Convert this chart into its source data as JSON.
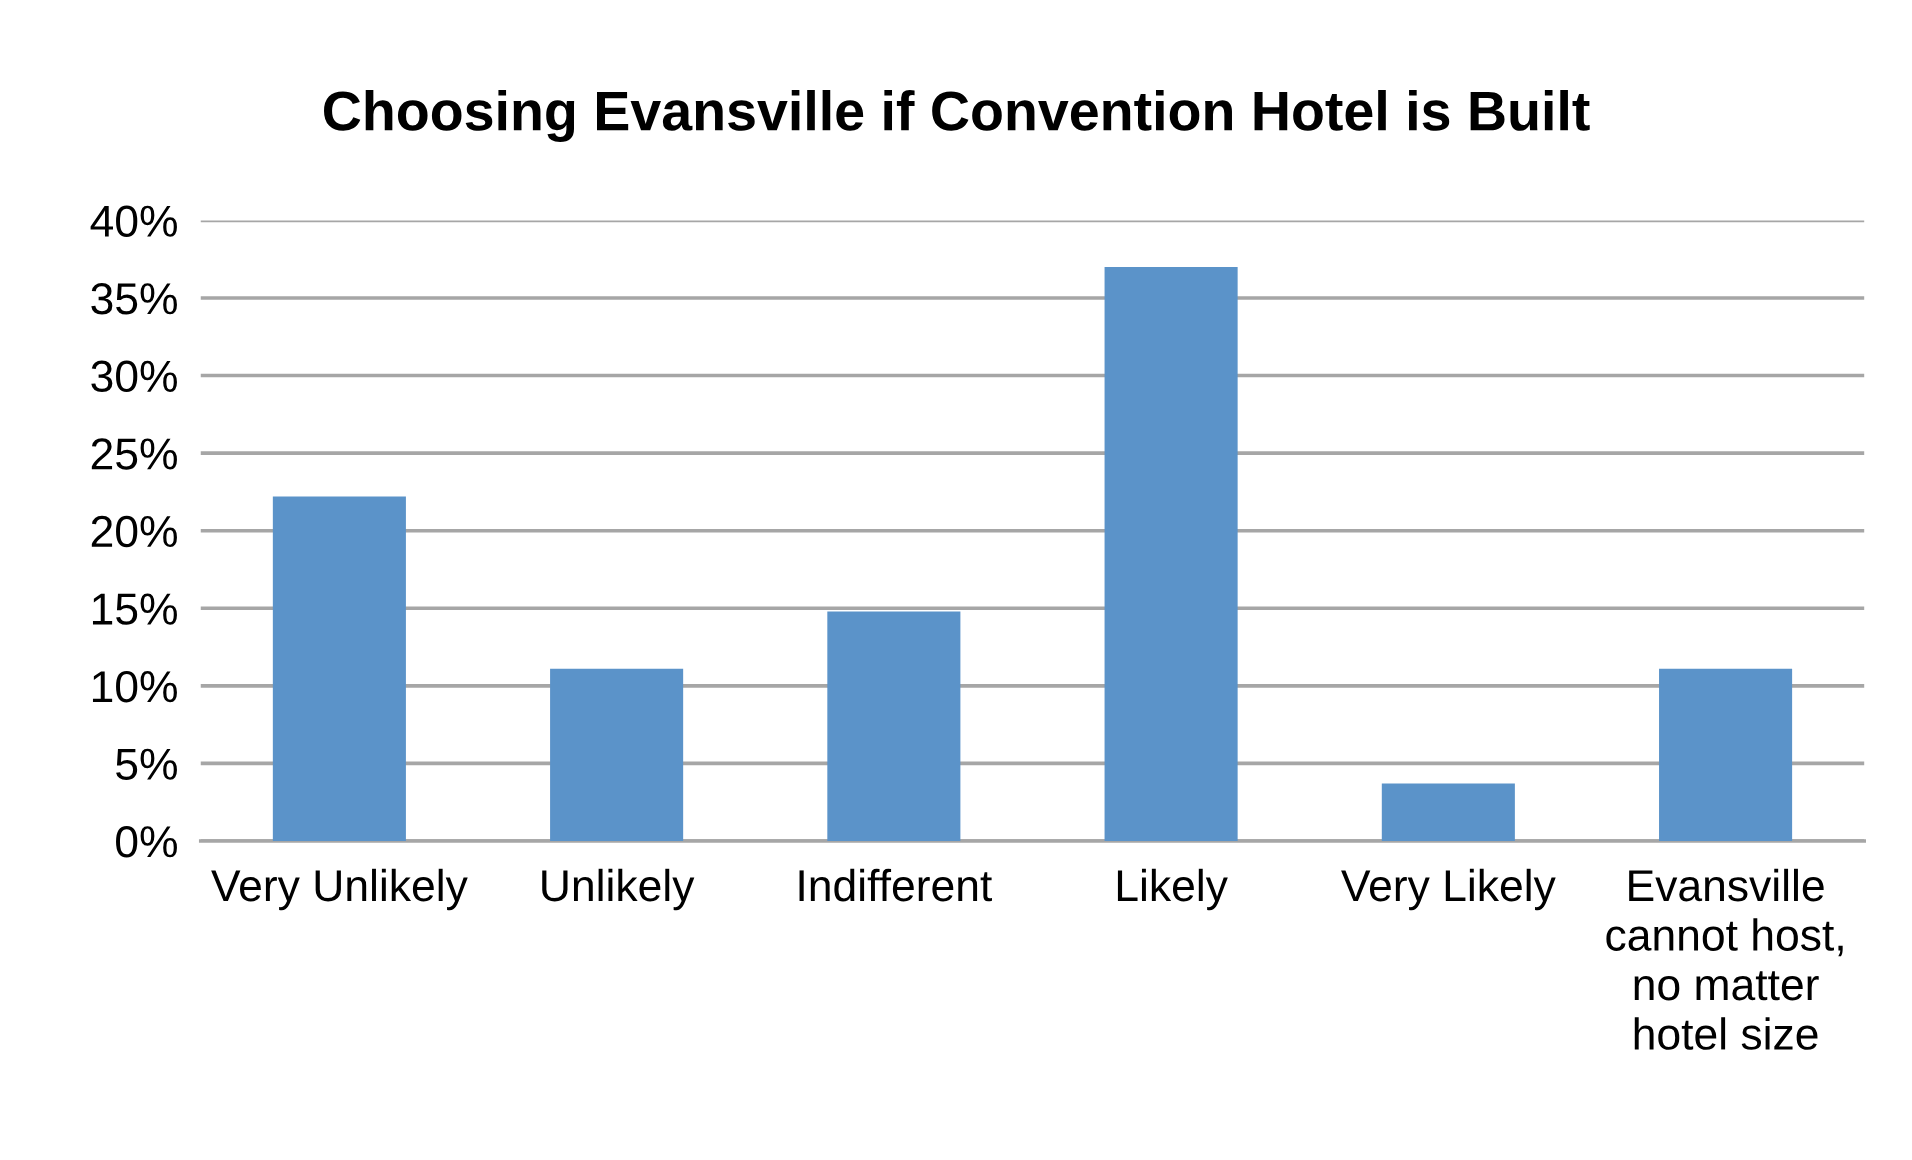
{
  "chart_data": {
    "type": "bar",
    "title": "Choosing Evansville if Convention Hotel is Built",
    "categories": [
      "Very Unlikely",
      "Unlikely",
      "Indifferent",
      "Likely",
      "Very Likely",
      "Evansville\ncannot host,\nno matter\nhotel size"
    ],
    "values": [
      22.2,
      11.1,
      14.8,
      37.0,
      3.7,
      11.1
    ],
    "color": "#5b93c9",
    "ylim": [
      0,
      40
    ],
    "yticks": [
      {
        "value": 0,
        "label": "0%"
      },
      {
        "value": 5,
        "label": "5%"
      },
      {
        "value": 10,
        "label": "10%"
      },
      {
        "value": 15,
        "label": "15%"
      },
      {
        "value": 20,
        "label": "20%"
      },
      {
        "value": 25,
        "label": "25%"
      },
      {
        "value": 30,
        "label": "30%"
      },
      {
        "value": 35,
        "label": "35%"
      },
      {
        "value": 40,
        "label": "40%"
      }
    ],
    "grid": "y",
    "legend": false
  }
}
